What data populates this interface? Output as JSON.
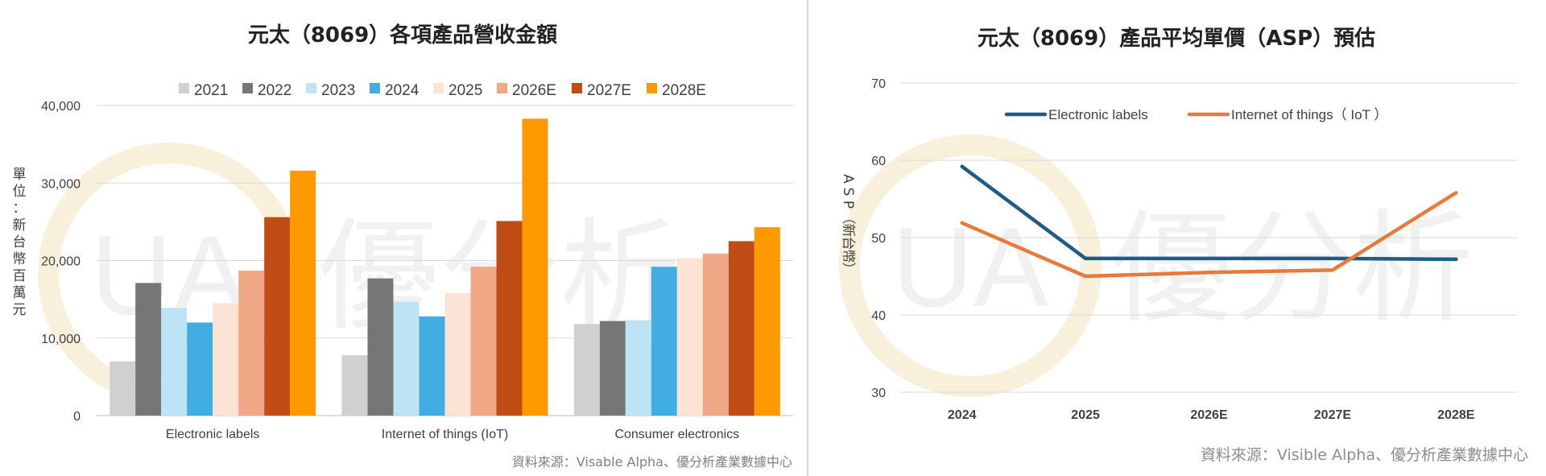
{
  "left": {
    "source": "資料來源：Visable Alpha、優分析產業數據中心",
    "ylabel_chars": [
      "單",
      "位",
      "：",
      "新",
      "台",
      "幣",
      "百",
      "萬",
      "元"
    ],
    "chart_data": {
      "type": "bar",
      "title": "元太（8069）各項產品營收金額",
      "categories": [
        "Electronic labels",
        "Internet of things (IoT)",
        "Consumer electronics"
      ],
      "series": [
        {
          "name": "2021",
          "color": "#d0d0d0",
          "values": [
            7000,
            7800,
            11800
          ]
        },
        {
          "name": "2022",
          "color": "#767676",
          "values": [
            17100,
            17700,
            12200
          ]
        },
        {
          "name": "2023",
          "color": "#bde3f6",
          "values": [
            13900,
            14700,
            12300
          ]
        },
        {
          "name": "2024",
          "color": "#41ade0",
          "values": [
            12000,
            12800,
            19200
          ]
        },
        {
          "name": "2025",
          "color": "#fbe3d6",
          "values": [
            14500,
            15800,
            20300
          ]
        },
        {
          "name": "2026E",
          "color": "#f0a886",
          "values": [
            18700,
            19200,
            20900
          ]
        },
        {
          "name": "2027E",
          "color": "#c14d16",
          "values": [
            25600,
            25100,
            22500
          ]
        },
        {
          "name": "2028E",
          "color": "#ff9900",
          "values": [
            31600,
            38300,
            24300
          ]
        }
      ],
      "xlabel": "",
      "ylabel": "單位：新台幣百萬元",
      "ylim": [
        0,
        40000
      ],
      "yticks": [
        "0",
        "10,000",
        "20,000",
        "30,000",
        "40,000"
      ],
      "grid": true,
      "legend": "top"
    }
  },
  "right": {
    "source": "資料來源：Visible Alpha、優分析產業數據中心",
    "ylabel_chars": [
      "A",
      "S",
      "P",
      "（",
      "新",
      "台",
      "幣",
      "）"
    ],
    "chart_data": {
      "type": "line",
      "title": "元太（8069）產品平均單價（ASP）預估",
      "x": [
        "2024",
        "2025",
        "2026E",
        "2027E",
        "2028E"
      ],
      "series": [
        {
          "name": "Electronic labels",
          "color": "#1f5c85",
          "values": [
            59.2,
            47.3,
            47.3,
            47.3,
            47.2
          ]
        },
        {
          "name": "Internet of things（ IoT ）",
          "color": "#e87a3c",
          "values": [
            51.9,
            45.0,
            45.5,
            45.8,
            55.8
          ]
        }
      ],
      "xlabel": "",
      "ylabel": "ASP（新台幣）",
      "ylim": [
        30,
        70
      ],
      "yticks": [
        "30",
        "40",
        "50",
        "60",
        "70"
      ],
      "grid": true,
      "legend": "top-center"
    }
  },
  "watermark": {
    "text": "優分析",
    "logo_letters": "UA"
  }
}
